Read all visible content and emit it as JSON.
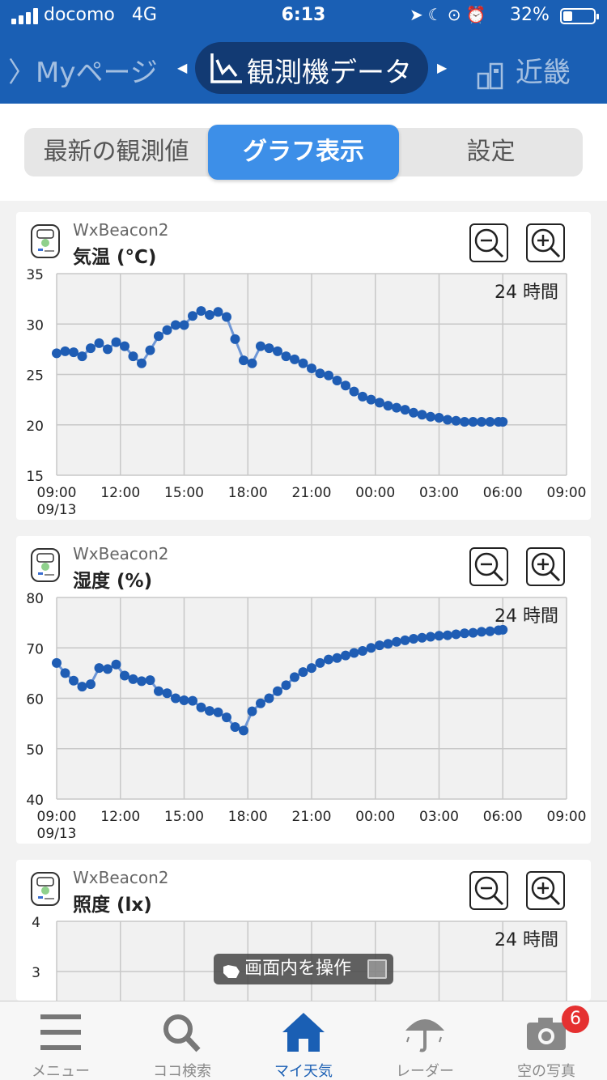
{
  "status_bar": {
    "carrier": "docomo",
    "network": "4G",
    "time": "6:13",
    "battery": "32%"
  },
  "header": {
    "prev_label": "〉Myページ",
    "title": "観測機データ",
    "next_label": "近畿"
  },
  "tabs": [
    {
      "label": "最新の観測値",
      "active": false
    },
    {
      "label": "グラフ表示",
      "active": true
    },
    {
      "label": "設定",
      "active": false
    }
  ],
  "cards": [
    {
      "device": "WxBeacon2",
      "metric": "気温 (°C)",
      "period": "24 時間"
    },
    {
      "device": "WxBeacon2",
      "metric": "湿度 (%)",
      "period": "24 時間"
    },
    {
      "device": "WxBeacon2",
      "metric": "照度 (lx)",
      "period": "24 時間"
    }
  ],
  "chart_data": [
    {
      "type": "line",
      "title": "気温 (°C)",
      "x_ticks": [
        "09:00",
        "12:00",
        "15:00",
        "18:00",
        "21:00",
        "00:00",
        "03:00",
        "06:00",
        "09:00"
      ],
      "x_date_label": "09/13",
      "ylim": [
        15,
        35
      ],
      "y_ticks": [
        15,
        20,
        25,
        30,
        35
      ],
      "grid": true,
      "series_color": "#1f5db4",
      "x_hours": [
        0,
        0.4,
        0.8,
        1.2,
        1.6,
        2.0,
        2.4,
        2.8,
        3.2,
        3.6,
        4.0,
        4.4,
        4.8,
        5.2,
        5.6,
        6.0,
        6.4,
        6.8,
        7.2,
        7.6,
        8.0,
        8.4,
        8.8,
        9.2,
        9.6,
        10.0,
        10.4,
        10.8,
        11.2,
        11.6,
        12.0,
        12.4,
        12.8,
        13.2,
        13.6,
        14.0,
        14.4,
        14.8,
        15.2,
        15.6,
        16.0,
        16.4,
        16.8,
        17.2,
        17.6,
        18.0,
        18.4,
        18.8,
        19.2,
        19.6,
        20.0,
        20.4,
        20.8,
        21.0
      ],
      "values": [
        27.1,
        27.3,
        27.2,
        26.8,
        27.6,
        28.1,
        27.5,
        28.2,
        27.8,
        26.8,
        26.1,
        27.4,
        28.8,
        29.4,
        29.9,
        29.9,
        30.8,
        31.3,
        30.9,
        31.2,
        30.7,
        28.5,
        26.4,
        26.1,
        27.8,
        27.6,
        27.3,
        26.8,
        26.5,
        26.1,
        25.6,
        25.1,
        24.9,
        24.4,
        23.9,
        23.3,
        22.8,
        22.5,
        22.2,
        21.9,
        21.7,
        21.5,
        21.2,
        21.0,
        20.8,
        20.7,
        20.5,
        20.4,
        20.3,
        20.3,
        20.3,
        20.3,
        20.3,
        20.3
      ]
    },
    {
      "type": "line",
      "title": "湿度 (%)",
      "x_ticks": [
        "09:00",
        "12:00",
        "15:00",
        "18:00",
        "21:00",
        "00:00",
        "03:00",
        "06:00",
        "09:00"
      ],
      "x_date_label": "09/13",
      "ylim": [
        40,
        80
      ],
      "y_ticks": [
        40,
        50,
        60,
        70,
        80
      ],
      "grid": true,
      "series_color": "#1f5db4",
      "x_hours": [
        0,
        0.4,
        0.8,
        1.2,
        1.6,
        2.0,
        2.4,
        2.8,
        3.2,
        3.6,
        4.0,
        4.4,
        4.8,
        5.2,
        5.6,
        6.0,
        6.4,
        6.8,
        7.2,
        7.6,
        8.0,
        8.4,
        8.8,
        9.2,
        9.6,
        10.0,
        10.4,
        10.8,
        11.2,
        11.6,
        12.0,
        12.4,
        12.8,
        13.2,
        13.6,
        14.0,
        14.4,
        14.8,
        15.2,
        15.6,
        16.0,
        16.4,
        16.8,
        17.2,
        17.6,
        18.0,
        18.4,
        18.8,
        19.2,
        19.6,
        20.0,
        20.4,
        20.8,
        21.0
      ],
      "values": [
        67.0,
        65.0,
        63.5,
        62.3,
        62.8,
        66.0,
        65.8,
        66.7,
        64.5,
        63.8,
        63.4,
        63.6,
        61.4,
        61.0,
        60.0,
        59.6,
        59.5,
        58.2,
        57.5,
        57.2,
        56.2,
        54.3,
        53.6,
        57.4,
        59.0,
        60.0,
        61.4,
        62.6,
        64.2,
        65.2,
        66.0,
        67.0,
        67.7,
        68.0,
        68.5,
        69.0,
        69.4,
        70.0,
        70.5,
        70.8,
        71.2,
        71.5,
        71.8,
        72.0,
        72.2,
        72.4,
        72.5,
        72.7,
        72.9,
        73.0,
        73.2,
        73.3,
        73.5,
        73.6
      ]
    },
    {
      "type": "line",
      "title": "照度 (lx)",
      "x_ticks": [],
      "ylim": [
        2,
        4
      ],
      "y_ticks": [
        3,
        4
      ],
      "grid": true
    }
  ],
  "overlay": {
    "label": "画面内を操作"
  },
  "bottom_nav": [
    {
      "label": "メニュー",
      "icon": "menu-icon",
      "active": false
    },
    {
      "label": "ココ検索",
      "icon": "search-icon",
      "active": false
    },
    {
      "label": "マイ天気",
      "icon": "home-icon",
      "active": true
    },
    {
      "label": "レーダー",
      "icon": "umbrella-icon",
      "active": false
    },
    {
      "label": "空の写真",
      "icon": "camera-icon",
      "active": false
    }
  ],
  "photo_badge": "6",
  "colors": {
    "header": "#1a5fb4",
    "accent_tab": "#3d8fe8",
    "series": "#1f5db4",
    "active_nav": "#1a5fb4",
    "badge": "#e53030"
  }
}
